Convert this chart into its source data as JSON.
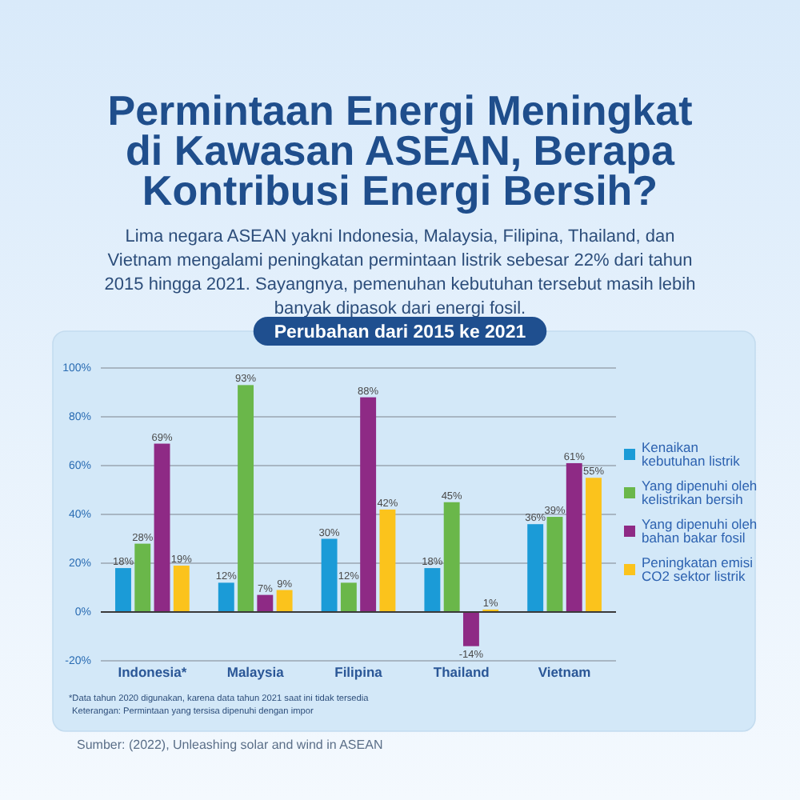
{
  "chart_data": {
    "type": "bar",
    "title": "Permintaan Energi Meningkat di Kawasan ASEAN, Berapa Kontribusi Energi Bersih?",
    "subtitle": "Lima negara ASEAN yakni Indonesia, Malaysia, Filipina, Thailand, dan Vietnam mengalami peningkatan permintaan listrik sebesar 22% dari tahun 2015 hingga 2021. Sayangnya, pemenuhan kebutuhan tersebut masih lebih banyak dipasok dari energi fosil.",
    "annotations": [
      "Perubahan dari 2015 ke 2021",
      "*Data tahun 2020 digunakan, karena data tahun 2021 saat ini tidak tersedia",
      "Keterangan: Permintaan yang tersisa dipenuhi dengan impor",
      "Sumber: (2022), Unleashing solar and wind in ASEAN"
    ],
    "categories": [
      "Indonesia*",
      "Malaysia",
      "Filipina",
      "Thailand",
      "Vietnam"
    ],
    "series": [
      {
        "name": "Kenaikan kebutuhan listrik",
        "color": "#1b9bd7",
        "values": [
          18,
          12,
          30,
          18,
          36
        ],
        "value_labels": [
          "18%",
          "12%",
          "30%",
          "18%",
          "36%"
        ]
      },
      {
        "name": "Yang dipenuhi oleh kelistrikan bersih",
        "color": "#6ab74a",
        "values": [
          28,
          93,
          12,
          45,
          39
        ],
        "value_labels": [
          "28%",
          "93%",
          "12%",
          "45%",
          "39%"
        ]
      },
      {
        "name": "Yang dipenuhi oleh bahan bakar fosil",
        "color": "#8e2a85",
        "values": [
          69,
          7,
          88,
          -14,
          61
        ],
        "value_labels": [
          "69%",
          "7%",
          "88%",
          "-14%",
          "61%"
        ]
      },
      {
        "name": "Peningkatan emisi CO2 sektor listrik",
        "color": "#fbc31c",
        "values": [
          19,
          9,
          42,
          1,
          55
        ],
        "value_labels": [
          "19%",
          "9%",
          "42%",
          "1%",
          "55%"
        ]
      }
    ],
    "ylim": [
      -20,
      100
    ],
    "yticks": [
      {
        "value": -20,
        "label": "-20%"
      },
      {
        "value": 0,
        "label": "0%"
      },
      {
        "value": 20,
        "label": "20%"
      },
      {
        "value": 40,
        "label": "40%"
      },
      {
        "value": 60,
        "label": "60%"
      },
      {
        "value": 80,
        "label": "80%"
      },
      {
        "value": 100,
        "label": "100%"
      }
    ],
    "grid": "y",
    "legend": "right"
  }
}
